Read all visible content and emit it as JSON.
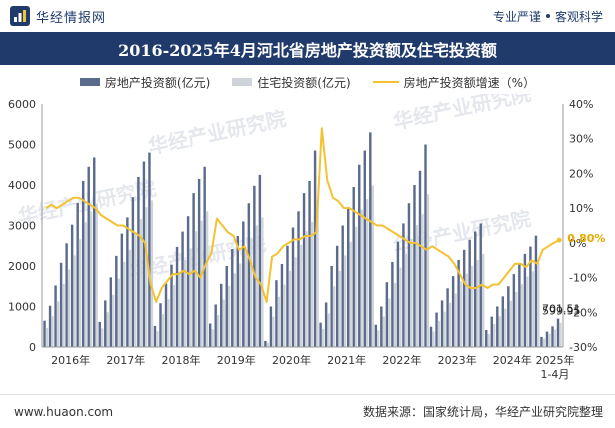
{
  "header": {
    "brand": "华经情报网",
    "slogan_left": "专业严谨",
    "slogan_right": "客观科学"
  },
  "chart_data": {
    "type": "bar+line",
    "title": "2016-2025年4月河北省房地产投资额及住宅投资额",
    "categories": [
      "2016年",
      "2017年",
      "2018年",
      "2019年",
      "2020年",
      "2021年",
      "2022年",
      "2023年",
      "2024年",
      "2025年1-4月"
    ],
    "y_left": {
      "min": 0,
      "max": 6000,
      "ticks": [
        0,
        1000,
        2000,
        3000,
        4000,
        5000,
        6000
      ]
    },
    "y_right": {
      "min": -30,
      "max": 40,
      "ticks": [
        "-30%",
        "-20%",
        "-10%",
        "0%",
        "10%",
        "20%",
        "30%",
        "40%"
      ]
    },
    "series": [
      {
        "name": "房地产投资额(亿元)",
        "kind": "bar",
        "color": "#5b6b8c",
        "values": [
          [
            650,
            1020,
            1520,
            2080,
            2560,
            3020,
            3560,
            4100,
            4450,
            4680
          ],
          [
            620,
            1150,
            1720,
            2250,
            2800,
            3200,
            3700,
            4200,
            4580,
            4800
          ],
          [
            520,
            1080,
            1570,
            2030,
            2470,
            2850,
            3230,
            3800,
            4150,
            4450
          ],
          [
            580,
            1050,
            1560,
            2000,
            2420,
            2740,
            3100,
            3550,
            3980,
            4250
          ],
          [
            150,
            1000,
            1650,
            2050,
            2500,
            2950,
            3350,
            3800,
            4100,
            4850
          ],
          [
            600,
            1100,
            2000,
            2500,
            3000,
            3450,
            3950,
            4500,
            4850,
            5300
          ],
          [
            550,
            1000,
            1600,
            2100,
            2600,
            3050,
            3550,
            4000,
            4350,
            5000
          ],
          [
            500,
            850,
            1150,
            1450,
            1750,
            2150,
            2400,
            2650,
            2850,
            3050
          ],
          [
            420,
            750,
            1000,
            1250,
            1500,
            1800,
            2050,
            2300,
            2480,
            2750
          ],
          [
            250,
            380,
            510,
            701.51
          ]
        ],
        "label_last": "701.51"
      },
      {
        "name": "住宅投资额(亿元)",
        "kind": "bar",
        "color": "#cfd3da",
        "values": [
          [
            470,
            760,
            1130,
            1560,
            1910,
            2260,
            2660,
            3080,
            3350,
            3540
          ],
          [
            460,
            860,
            1290,
            1690,
            2100,
            2400,
            2780,
            3160,
            3450,
            3620
          ],
          [
            390,
            810,
            1180,
            1530,
            1860,
            2150,
            2430,
            2860,
            3120,
            3350
          ],
          [
            440,
            790,
            1170,
            1510,
            1820,
            2060,
            2330,
            2670,
            3000,
            3200
          ],
          [
            110,
            750,
            1240,
            1540,
            1880,
            2220,
            2520,
            2860,
            3090,
            3650
          ],
          [
            450,
            830,
            1500,
            1880,
            2260,
            2600,
            2970,
            3390,
            3650,
            3990
          ],
          [
            410,
            750,
            1200,
            1580,
            1960,
            2300,
            2670,
            3010,
            3280,
            3770
          ],
          [
            380,
            640,
            870,
            1090,
            1320,
            1620,
            1810,
            2000,
            2150,
            2300
          ],
          [
            320,
            570,
            760,
            950,
            1140,
            1360,
            1550,
            1740,
            1870,
            2070
          ],
          [
            210,
            320,
            430,
            599.95
          ]
        ],
        "label_last": "599.95"
      },
      {
        "name": "房地产投资额增速（%）",
        "kind": "line",
        "axis": "right",
        "color": "#f2c230",
        "values": [
          [
            10,
            11,
            10,
            11,
            12,
            13,
            13,
            12,
            11,
            10
          ],
          [
            8,
            7,
            6,
            5,
            5,
            4,
            3,
            2,
            0,
            -12
          ],
          [
            -17,
            -13,
            -11,
            -9,
            -9,
            -8,
            -9,
            -8,
            -10,
            -6
          ],
          [
            -3,
            7,
            5,
            3,
            2,
            -2,
            -1,
            -5,
            -10,
            -12
          ],
          [
            -17,
            -4,
            -3,
            -1,
            0,
            1,
            1,
            2,
            2,
            3
          ],
          [
            33,
            18,
            13,
            12,
            10,
            10,
            9,
            8,
            7,
            6
          ],
          [
            5,
            5,
            4,
            3,
            2,
            1,
            0,
            0,
            -1,
            -2
          ],
          [
            -1,
            -2,
            -3,
            -4,
            -6,
            -9,
            -12,
            -13,
            -13,
            -12
          ],
          [
            -13,
            -12,
            -12,
            -10,
            -8,
            -6,
            -6,
            -7,
            -5,
            -6
          ],
          [
            -2,
            -1,
            0,
            0.8
          ]
        ],
        "label_last": "0.80%"
      }
    ]
  },
  "footer": {
    "url": "www.huaon.com",
    "source": "数据来源：国家统计局，华经产业研究院整理"
  },
  "watermark": "华经产业研究院"
}
